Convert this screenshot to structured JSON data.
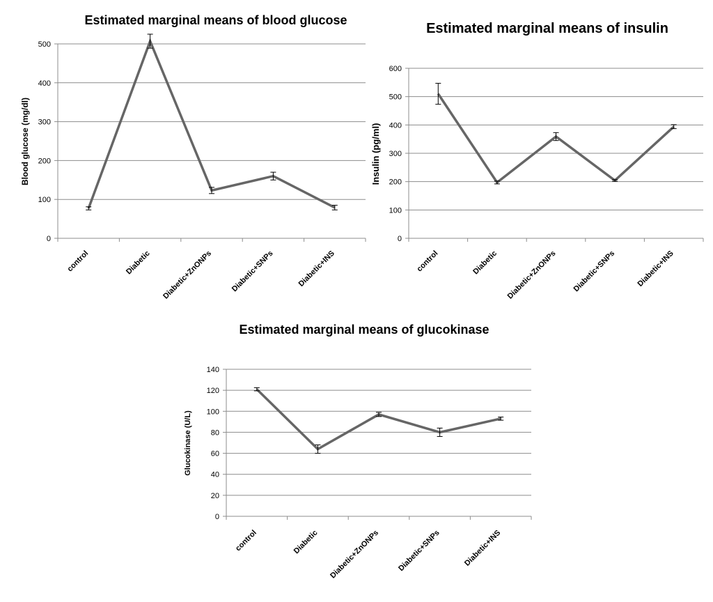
{
  "chart_data": [
    {
      "type": "line",
      "title": "Estimated marginal means of blood glucose",
      "xlabel": "",
      "ylabel": "Blood glucose (mg/dl)",
      "categories": [
        "control",
        "Diabetic",
        "Diabetic+ZnONPs",
        "Diabetic+SNPs",
        "Diabetic+INS"
      ],
      "series": [
        {
          "values": [
            77,
            507,
            123,
            160,
            79
          ],
          "errors": [
            4,
            18,
            8,
            10,
            6
          ]
        }
      ],
      "ylim": [
        0,
        500
      ],
      "yticks": [
        0,
        100,
        200,
        300,
        400,
        500
      ],
      "grid": true,
      "line_color": "#666666"
    },
    {
      "type": "line",
      "title": "Estimated marginal means of insulin",
      "xlabel": "",
      "ylabel": "Insulin (pg/ml)",
      "categories": [
        "control",
        "Diabetic",
        "Diabetic+ZnONPs",
        "Diabetic+SNPs",
        "Diabetic+INS"
      ],
      "series": [
        {
          "values": [
            510,
            197,
            359,
            204,
            394
          ],
          "errors": [
            37,
            5,
            14,
            3,
            7
          ]
        }
      ],
      "ylim": [
        0,
        600
      ],
      "yticks": [
        0,
        100,
        200,
        300,
        400,
        500,
        600
      ],
      "grid": true,
      "line_color": "#666666"
    },
    {
      "type": "line",
      "title": "Estimated marginal means of glucokinase",
      "xlabel": "",
      "ylabel": "Glucokinase  (U/L)",
      "categories": [
        "control",
        "Diabetic",
        "Diabetic+ZnONPs",
        "Diabetic+SNPs",
        "Diabetic+INS"
      ],
      "series": [
        {
          "values": [
            121,
            64,
            97,
            80,
            93
          ],
          "errors": [
            1.5,
            4,
            2,
            4,
            1.5
          ]
        }
      ],
      "ylim": [
        0,
        140
      ],
      "yticks": [
        0,
        20,
        40,
        60,
        80,
        100,
        120,
        140
      ],
      "grid": true,
      "line_color": "#666666"
    }
  ]
}
